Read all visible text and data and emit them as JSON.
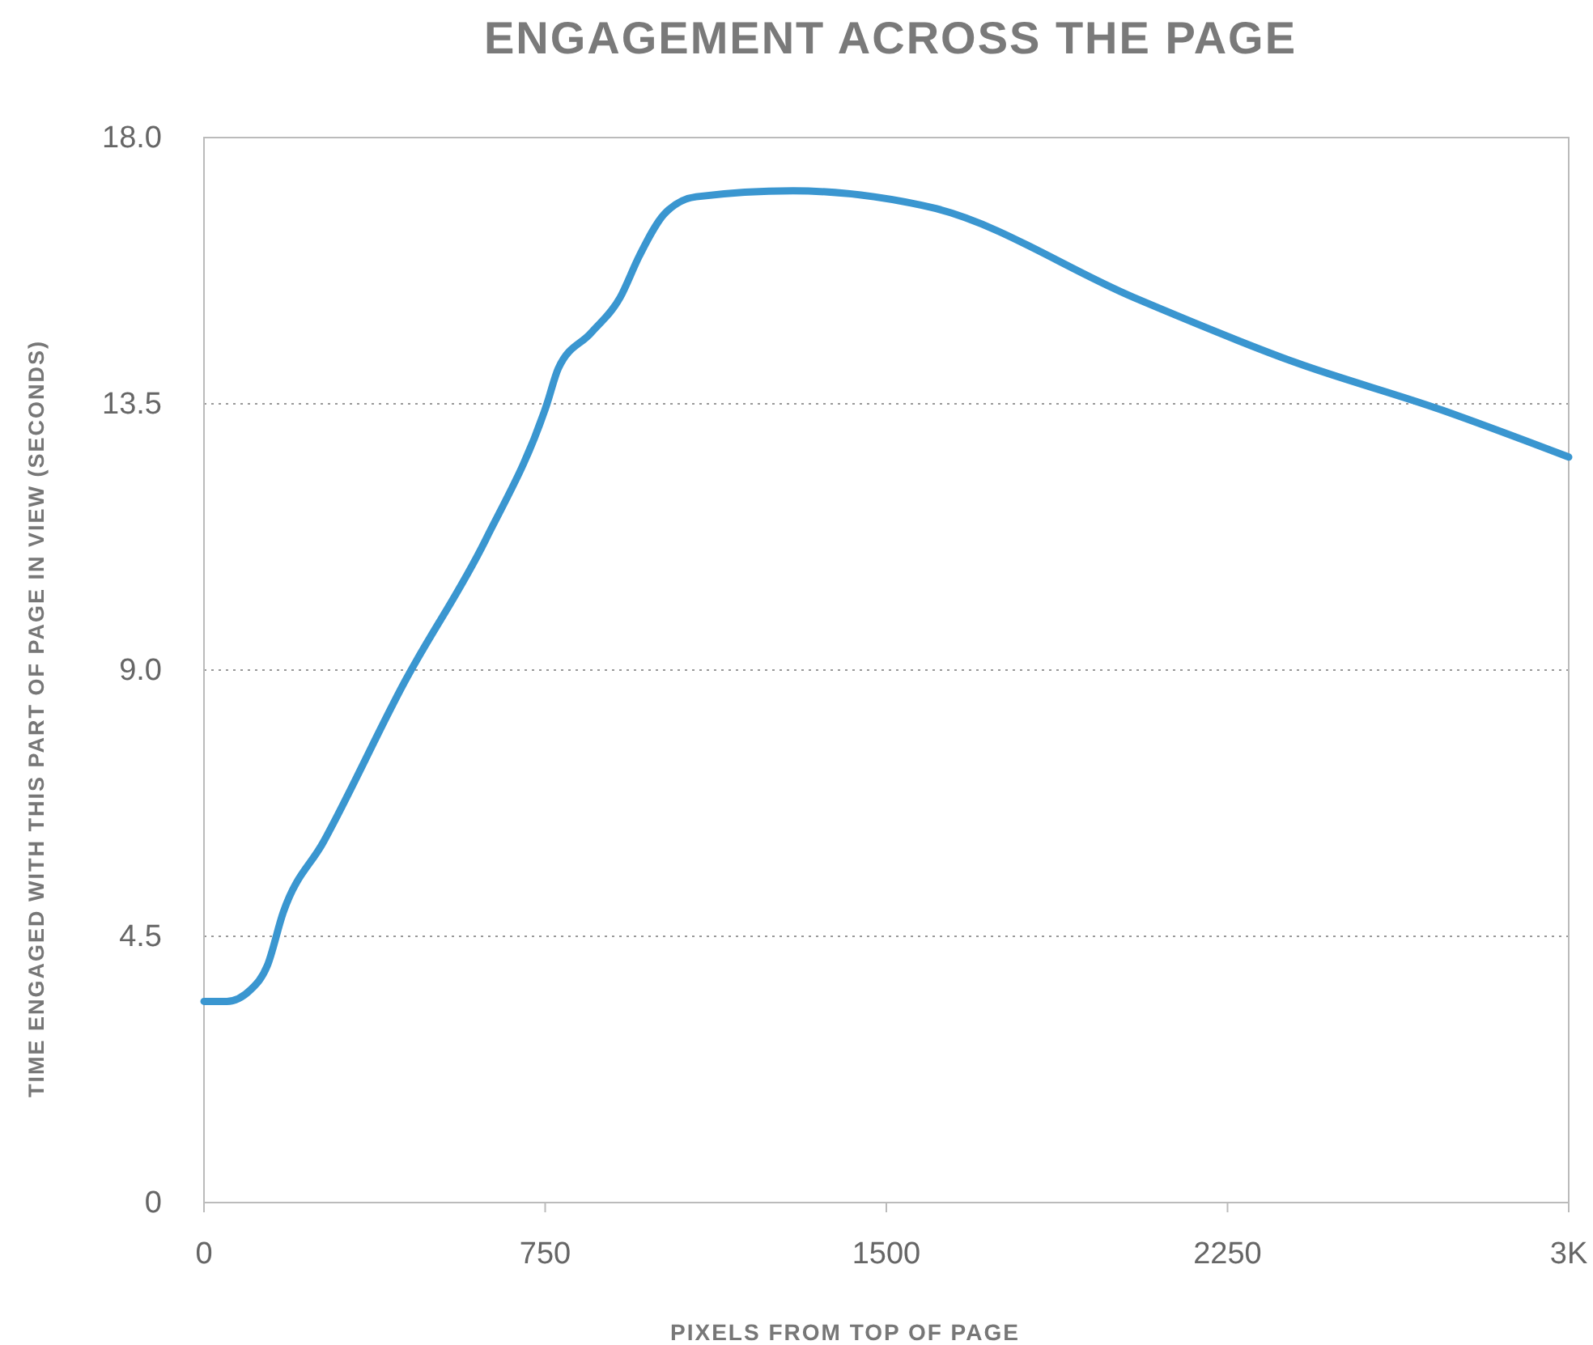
{
  "chart_data": {
    "type": "line",
    "title": "ENGAGEMENT ACROSS THE PAGE",
    "xlabel": "PIXELS FROM TOP OF PAGE",
    "ylabel": "TIME ENGAGED WITH THIS PART OF PAGE IN VIEW (SECONDS)",
    "x": [
      0,
      50,
      103,
      139,
      174,
      263,
      441,
      619,
      754,
      779,
      851,
      915,
      957,
      1011,
      1082,
      1295,
      1473,
      1609,
      2043,
      2399,
      2719,
      3000
    ],
    "series": [
      {
        "color": "#3a96d0",
        "values": [
          3.4,
          3.4,
          3.6,
          4.0,
          4.9,
          6.1,
          8.8,
          11.2,
          13.5,
          14.1,
          14.7,
          15.3,
          16.0,
          16.7,
          17.0,
          17.1,
          17.0,
          16.8,
          15.3,
          14.2,
          13.4,
          12.6
        ]
      }
    ],
    "xlim": [
      0,
      3000
    ],
    "xticks": [
      0,
      750,
      1500,
      2250,
      {
        "value": 3000,
        "label": "3K"
      }
    ],
    "ylim": [
      0,
      18
    ],
    "yticks": [
      0,
      4.5,
      {
        "value": 9,
        "label": "9.0"
      },
      13.5,
      {
        "value": 18,
        "label": "18.0"
      }
    ],
    "grid": "y",
    "marker": "none",
    "line_style": "solid"
  }
}
